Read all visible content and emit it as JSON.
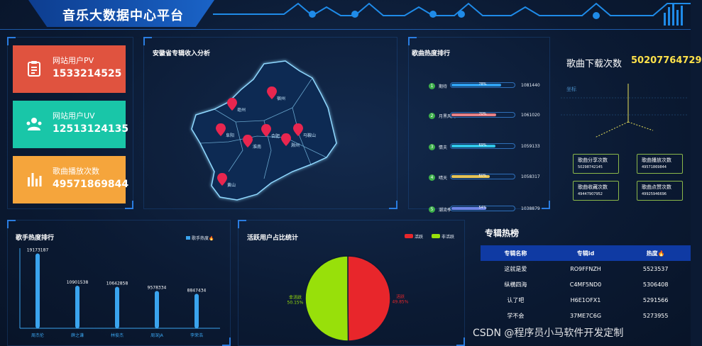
{
  "header": {
    "title": "音乐大数据中心平台"
  },
  "stats": [
    {
      "label": "网站用户PV",
      "value": "1533214525",
      "color": "#e0533f",
      "icon": "clipboard-icon"
    },
    {
      "label": "网站用户UV",
      "value": "12513124135",
      "color": "#19c6a8",
      "icon": "users-icon"
    },
    {
      "label": "歌曲播放次数",
      "value": "49571869844",
      "color": "#f5a53c",
      "icon": "bar-chart-icon"
    }
  ],
  "map_panel": {
    "title": "安徽省专辑收入分析",
    "cities": [
      {
        "name": "亳州"
      },
      {
        "name": "宿州"
      },
      {
        "name": "阜阳"
      },
      {
        "name": "淮南"
      },
      {
        "name": "合肥"
      },
      {
        "name": "滁州"
      },
      {
        "name": "马鞍山"
      },
      {
        "name": "黄山"
      }
    ]
  },
  "song_ranking": {
    "title": "歌曲热度排行",
    "items": [
      {
        "rank": "1",
        "name": "期待",
        "percent": "78%",
        "fill": 0.78,
        "count": "1081440",
        "color": "#2fa0ef",
        "badge": "#3db04a"
      },
      {
        "rank": "2",
        "name": "月黑风高",
        "percent": "70%",
        "fill": 0.7,
        "count": "1061020",
        "color": "#e88085",
        "badge": "#3db04a"
      },
      {
        "rank": "3",
        "name": "情夫",
        "percent": "69%",
        "fill": 0.69,
        "count": "1059133",
        "color": "#2fc6e8",
        "badge": "#3db04a"
      },
      {
        "rank": "4",
        "name": "晴天",
        "percent": "60%",
        "fill": 0.6,
        "count": "1058317",
        "color": "#e6c457",
        "badge": "#3db04a"
      },
      {
        "rank": "5",
        "name": "潮流季",
        "percent": "54%",
        "fill": 0.54,
        "count": "1038879",
        "color": "#6f86e8",
        "badge": "#3db04a"
      }
    ]
  },
  "downloads": {
    "title": "歌曲下载次数",
    "value": "50207764729",
    "axis_label": "坐标",
    "boxes": [
      {
        "label": "歌曲分享次数",
        "value": "50298742145"
      },
      {
        "label": "歌曲播放次数",
        "value": "49571869844"
      },
      {
        "label": "歌曲收藏次数",
        "value": "49447907952"
      },
      {
        "label": "歌曲点赞次数",
        "value": "49925946696"
      }
    ]
  },
  "singer_chart": {
    "title": "歌手热度排行",
    "legend": "歌手热度🔥"
  },
  "active_chart": {
    "title": "活跃用户占比统计",
    "legend_active": "活跃",
    "legend_inactive": "非活跃"
  },
  "album_chart": {
    "title": "专辑热榜",
    "columns": [
      "专辑名称",
      "专辑id",
      "热度🔥"
    ],
    "rows": [
      [
        "这就是爱",
        "RO9FFNZH",
        "5523537"
      ],
      [
        "纵横四海",
        "C4MF5ND0",
        "5306408"
      ],
      [
        "认了吧",
        "H6E1OFX1",
        "5291566"
      ],
      [
        "学不会",
        "37ME7C6G",
        "5273955"
      ]
    ]
  },
  "watermark": "CSDN @程序员小马软件开发定制",
  "chart_data": [
    {
      "type": "bar",
      "title": "歌手热度排行",
      "categories": [
        "周杰伦",
        "薛之谦",
        "林俊杰",
        "周深JA",
        "李荣浩"
      ],
      "series": [
        {
          "name": "歌手热度🔥",
          "values": [
            19173187,
            10901538,
            10642858,
            9578334,
            8847434
          ]
        }
      ],
      "value_labels": [
        "19173187",
        "10901538",
        "10642858",
        "9578334",
        "8847434"
      ],
      "ylim": [
        0,
        20000000
      ]
    },
    {
      "type": "pie",
      "title": "活跃用户占比统计",
      "labels": [
        "活跃",
        "非活跃"
      ],
      "values": [
        49.85,
        50.15
      ],
      "label_text": [
        "活跃\n49.85%",
        "非活跃\n50.15%"
      ],
      "colors": [
        "#e8262b",
        "#98e00a"
      ]
    }
  ]
}
